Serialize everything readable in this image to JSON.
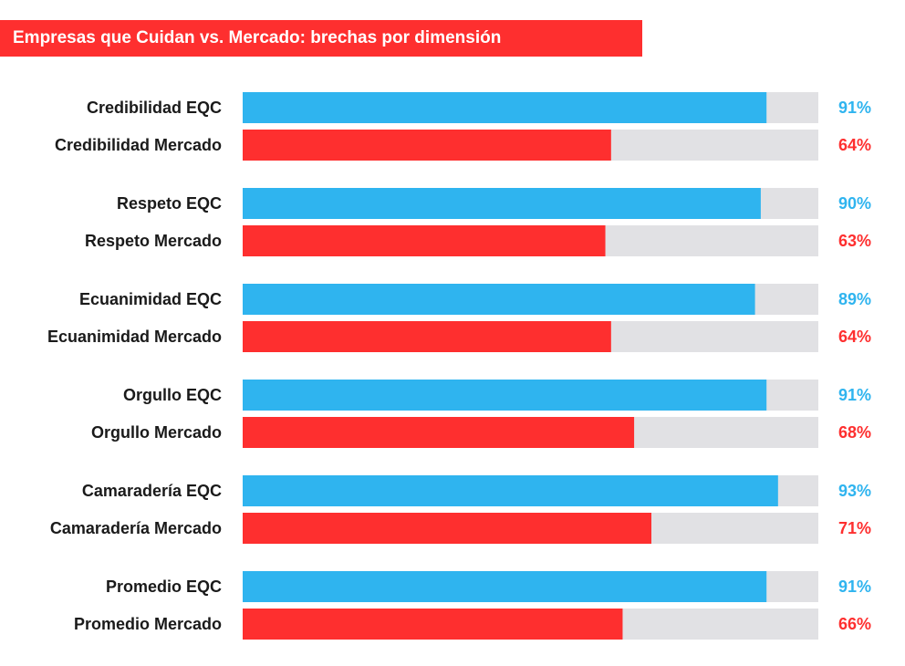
{
  "chart_data": {
    "type": "bar",
    "orientation": "horizontal",
    "title": "Empresas que Cuidan vs. Mercado: brechas por dimensión",
    "categories": [
      "Credibilidad EQC",
      "Credibilidad Mercado",
      "Respeto EQC",
      "Respeto Mercado",
      "Ecuanimidad EQC",
      "Ecuanimidad Mercado",
      "Orgullo EQC",
      "Orgullo Mercado",
      "Camaradería EQC",
      "Camaradería Mercado",
      "Promedio EQC",
      "Promedio Mercado"
    ],
    "values": [
      91,
      64,
      90,
      63,
      89,
      64,
      91,
      68,
      93,
      71,
      91,
      66
    ],
    "value_labels": [
      "91%",
      "64%",
      "90%",
      "63%",
      "89%",
      "64%",
      "91%",
      "68%",
      "93%",
      "71%",
      "91%",
      "66%"
    ],
    "groups": [
      "EQC",
      "Mercado",
      "EQC",
      "Mercado",
      "EQC",
      "Mercado",
      "EQC",
      "Mercado",
      "EQC",
      "Mercado",
      "EQC",
      "Mercado"
    ],
    "xlim": [
      0,
      100
    ],
    "grid": false,
    "legend": "none",
    "colors": {
      "EQC": "#2fb4ef",
      "Mercado": "#fe2f2f",
      "track": "#e1e1e4",
      "title_bg": "#fe2f2f"
    }
  }
}
